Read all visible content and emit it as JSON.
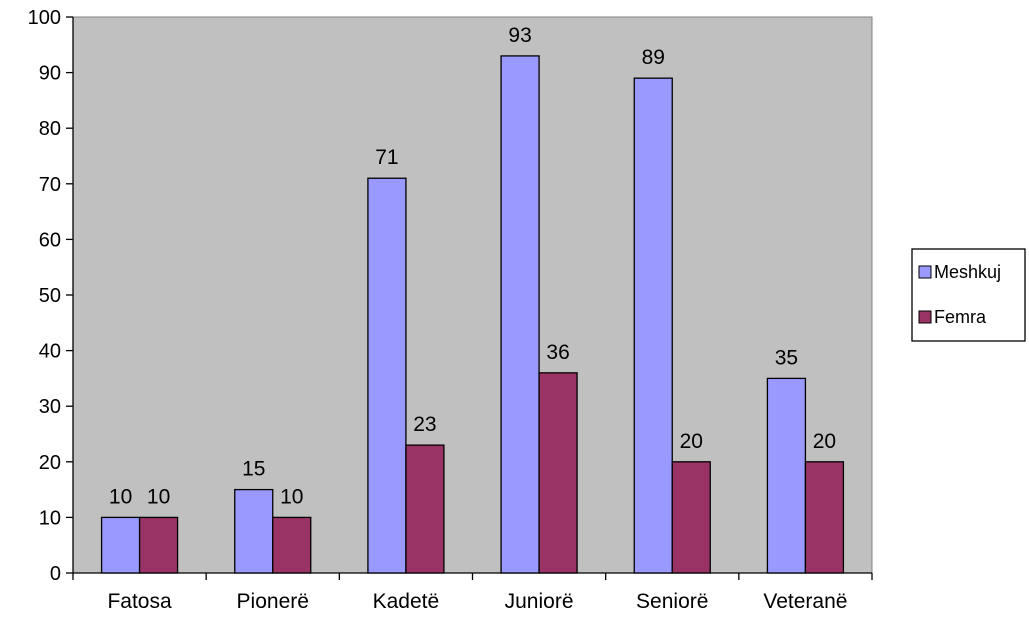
{
  "chart_data": {
    "type": "bar",
    "title": "",
    "xlabel": "",
    "ylabel": "",
    "categories": [
      "Fatosa",
      "Pionerë",
      "Kadetë",
      "Juniorë",
      "Seniorë",
      "Veteranë"
    ],
    "series": [
      {
        "name": "Meshkuj",
        "values": [
          10,
          15,
          71,
          93,
          89,
          35
        ],
        "color": "#9999ff"
      },
      {
        "name": "Femra",
        "values": [
          10,
          10,
          23,
          36,
          20,
          20
        ],
        "color": "#993366"
      }
    ],
    "ylim": [
      0,
      100
    ],
    "yticks": [
      0,
      10,
      20,
      30,
      40,
      50,
      60,
      70,
      80,
      90,
      100
    ],
    "grid": false,
    "data_labels": true,
    "legend_position": "right",
    "plot_background": "#c0c0c0"
  }
}
